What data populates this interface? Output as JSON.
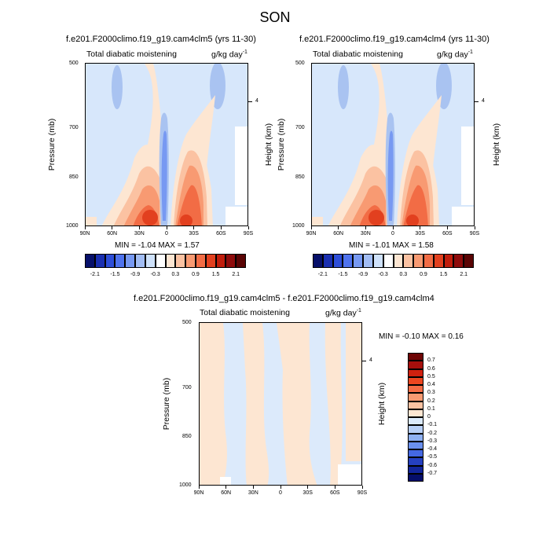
{
  "title": "SON",
  "panels": [
    {
      "title": "f.e201.F2000climo.f19_g19.cam4clm5 (yrs 11-30)",
      "left_label": "Total diabatic moistening",
      "right_label": "g/kg day",
      "units_exp": "-1",
      "min_max": "MIN =  -1.04  MAX =   1.57"
    },
    {
      "title": "f.e201.F2000climo.f19_g19.cam4clm4 (yrs 11-30)",
      "left_label": "Total diabatic moistening",
      "right_label": "g/kg day",
      "units_exp": "-1",
      "min_max": "MIN =  -1.01  MAX =   1.58"
    },
    {
      "title": "f.e201.F2000climo.f19_g19.cam4clm5 - f.e201.F2000climo.f19_g19.cam4clm4",
      "left_label": "Total diabatic moistening",
      "right_label": "g/kg day",
      "units_exp": "-1",
      "min_max": "MIN =  -0.10  MAX =   0.16"
    }
  ],
  "axes": {
    "ylabel": "Pressure (mb)",
    "right_label": "Height (km)",
    "y_ticks": [
      "500",
      "700",
      "850",
      "1000"
    ],
    "x_ticks": [
      "90N",
      "60N",
      "30N",
      "0",
      "30S",
      "60S",
      "90S"
    ],
    "height_tick": "4"
  },
  "chart_data": [
    {
      "type": "heatmap",
      "title": "f.e201.F2000climo.f19_g19.cam4clm5 (yrs 11-30)",
      "xlabel": "",
      "ylabel": "Pressure (mb)",
      "x": [
        "90N",
        "60N",
        "30N",
        "0",
        "30S",
        "60S",
        "90S"
      ],
      "y_range": [
        500,
        1000
      ],
      "levels": [
        -2.1,
        -1.8,
        -1.5,
        -1.2,
        -0.9,
        -0.6,
        -0.3,
        0,
        0.3,
        0.6,
        0.9,
        1.2,
        1.5,
        1.8,
        2.1
      ],
      "min": -1.04,
      "max": 1.57
    },
    {
      "type": "heatmap",
      "title": "f.e201.F2000climo.f19_g19.cam4clm4 (yrs 11-30)",
      "xlabel": "",
      "ylabel": "Pressure (mb)",
      "x": [
        "90N",
        "60N",
        "30N",
        "0",
        "30S",
        "60S",
        "90S"
      ],
      "y_range": [
        500,
        1000
      ],
      "levels": [
        -2.1,
        -1.8,
        -1.5,
        -1.2,
        -0.9,
        -0.6,
        -0.3,
        0,
        0.3,
        0.6,
        0.9,
        1.2,
        1.5,
        1.8,
        2.1
      ],
      "min": -1.01,
      "max": 1.58
    },
    {
      "type": "heatmap",
      "title": "f.e201.F2000climo.f19_g19.cam4clm5 - f.e201.F2000climo.f19_g19.cam4clm4",
      "xlabel": "",
      "ylabel": "Pressure (mb)",
      "x": [
        "90N",
        "60N",
        "30N",
        "0",
        "30S",
        "60S",
        "90S"
      ],
      "y_range": [
        500,
        1000
      ],
      "levels": [
        -0.7,
        -0.6,
        -0.5,
        -0.4,
        -0.3,
        -0.2,
        -0.1,
        0,
        0.1,
        0.2,
        0.3,
        0.4,
        0.5,
        0.6,
        0.7
      ],
      "min": -0.1,
      "max": 0.16
    }
  ],
  "colorbar_top": {
    "labels": [
      "-2.1",
      "-1.5",
      "-0.9",
      "-0.3",
      "0.3",
      "0.9",
      "1.5",
      "2.1"
    ],
    "colors": [
      "#07106a",
      "#1a2fb0",
      "#2e4ed8",
      "#4f73ee",
      "#7799f2",
      "#a2bdf4",
      "#cfe2fb",
      "#ffffff",
      "#fde6d2",
      "#fbc2a2",
      "#f89a72",
      "#f26c45",
      "#e2401f",
      "#c01d0c",
      "#8e0b0b",
      "#5a0404"
    ]
  },
  "colorbar_diff": {
    "labels": [
      "0.7",
      "0.6",
      "0.5",
      "0.4",
      "0.3",
      "0.2",
      "0.1",
      "0",
      "-0.1",
      "-0.2",
      "-0.3",
      "-0.4",
      "-0.5",
      "-0.6",
      "-0.7"
    ],
    "colors": [
      "#6e0505",
      "#a50f0c",
      "#d0210f",
      "#ec4620",
      "#f46c45",
      "#f89a72",
      "#fbc2a2",
      "#fde6d2",
      "#dceafb",
      "#b8cff6",
      "#8eb0f2",
      "#6a90ee",
      "#4468e2",
      "#2540c0",
      "#12259a",
      "#050e6a"
    ]
  }
}
